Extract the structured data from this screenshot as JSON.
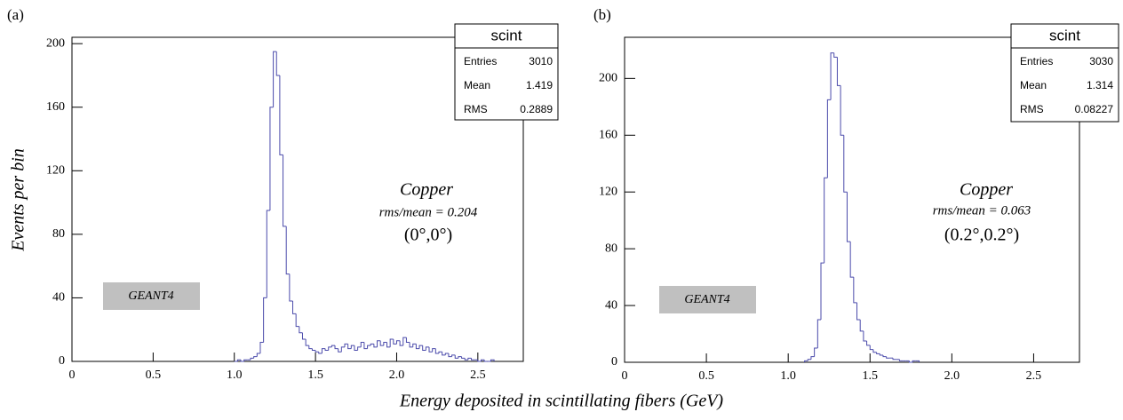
{
  "chart_data": [
    {
      "type": "histogram",
      "panel_label": "(a)",
      "ylabel": "Events per bin",
      "xlabel": "Energy deposited in scintillating fibers (GeV)",
      "color": "#4b4bab",
      "bins": [
        1.0,
        1.02,
        1.04,
        1.06,
        1.08,
        1.1,
        1.12,
        1.14,
        1.16,
        1.18,
        1.2,
        1.22,
        1.24,
        1.26,
        1.28,
        1.3,
        1.32,
        1.34,
        1.36,
        1.38,
        1.4,
        1.42,
        1.44,
        1.46,
        1.48,
        1.5,
        1.52,
        1.54,
        1.56,
        1.58,
        1.6,
        1.62,
        1.64,
        1.66,
        1.68,
        1.7,
        1.72,
        1.74,
        1.76,
        1.78,
        1.8,
        1.82,
        1.84,
        1.86,
        1.88,
        1.9,
        1.92,
        1.94,
        1.96,
        1.98,
        2.0,
        2.02,
        2.04,
        2.06,
        2.08,
        2.1,
        2.12,
        2.14,
        2.16,
        2.18,
        2.2,
        2.22,
        2.24,
        2.26,
        2.28,
        2.3,
        2.32,
        2.34,
        2.36,
        2.38,
        2.4,
        2.42,
        2.44,
        2.46,
        2.48,
        2.5,
        2.52,
        2.54,
        2.56,
        2.58,
        2.6
      ],
      "values": [
        0,
        1,
        0,
        1,
        1,
        2,
        3,
        5,
        12,
        40,
        95,
        160,
        195,
        180,
        130,
        85,
        55,
        38,
        30,
        22,
        18,
        14,
        10,
        8,
        7,
        6,
        5,
        8,
        7,
        9,
        10,
        8,
        6,
        9,
        11,
        8,
        10,
        7,
        9,
        12,
        8,
        10,
        11,
        9,
        13,
        10,
        12,
        9,
        14,
        11,
        13,
        10,
        15,
        12,
        9,
        11,
        8,
        10,
        7,
        9,
        6,
        8,
        5,
        6,
        4,
        5,
        3,
        4,
        2,
        3,
        2,
        1,
        2,
        1,
        1,
        0,
        1,
        0,
        0,
        1
      ],
      "xlim": [
        0,
        2.78
      ],
      "ylim": [
        0,
        204
      ],
      "xticks": [
        0,
        0.5,
        {
          "value": 1,
          "label": "1.0"
        },
        1.5,
        {
          "value": 2,
          "label": "2.0"
        },
        2.5
      ],
      "yticks": [
        0,
        40,
        80,
        120,
        160,
        200
      ],
      "stats": {
        "title": "scint",
        "labels": [
          "Entries",
          "Mean",
          "RMS"
        ],
        "values": [
          3010,
          1.419,
          0.2889
        ]
      },
      "annotations": [
        "Copper",
        "rms/mean = 0.204",
        "(0°,0°)",
        "GEANT4"
      ]
    },
    {
      "type": "histogram",
      "panel_label": "(b)",
      "color": "#4b4bab",
      "bins": [
        1.1,
        1.12,
        1.14,
        1.16,
        1.18,
        1.2,
        1.22,
        1.24,
        1.26,
        1.28,
        1.3,
        1.32,
        1.34,
        1.36,
        1.38,
        1.4,
        1.42,
        1.44,
        1.46,
        1.48,
        1.5,
        1.52,
        1.54,
        1.56,
        1.58,
        1.6,
        1.62,
        1.64,
        1.66,
        1.68,
        1.7,
        1.72,
        1.74,
        1.76,
        1.78,
        1.8
      ],
      "values": [
        1,
        2,
        4,
        10,
        30,
        70,
        130,
        185,
        218,
        215,
        195,
        160,
        120,
        85,
        60,
        42,
        30,
        22,
        15,
        12,
        9,
        7,
        6,
        5,
        4,
        3,
        3,
        2,
        2,
        1,
        1,
        1,
        0,
        1,
        1
      ],
      "xlim": [
        0,
        2.78
      ],
      "ylim": [
        0,
        229
      ],
      "xticks": [
        0,
        0.5,
        {
          "value": 1,
          "label": "1.0"
        },
        1.5,
        {
          "value": 2,
          "label": "2.0"
        },
        2.5
      ],
      "yticks": [
        0,
        40,
        80,
        120,
        160,
        200
      ],
      "stats": {
        "title": "scint",
        "labels": [
          "Entries",
          "Mean",
          "RMS"
        ],
        "values": [
          3030,
          1.314,
          0.08227
        ]
      },
      "annotations": [
        "Copper",
        "rms/mean = 0.063",
        "(0.2°,0.2°)",
        "GEANT4"
      ]
    }
  ]
}
